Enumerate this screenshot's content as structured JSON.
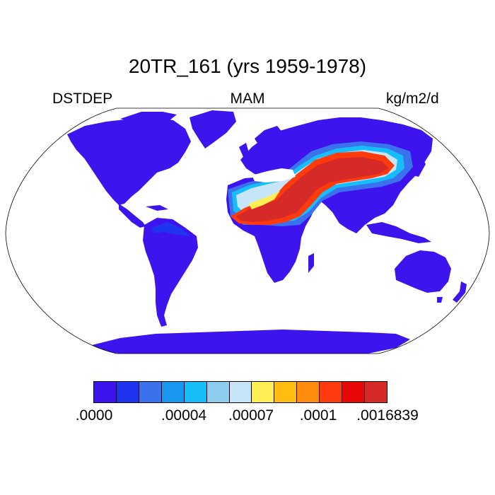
{
  "title": "20TR_161 (yrs 1959-1978)",
  "variable": "DSTDEP",
  "season": "MAM",
  "units": "kg/m2/d",
  "colorbar": {
    "colors": [
      "#3d13ee",
      "#1f34ee",
      "#3a72ee",
      "#1998f0",
      "#16bdf8",
      "#8ecdee",
      "#c6e6f8",
      "#ffee55",
      "#ffbd12",
      "#ff8b0f",
      "#ff3a0c",
      "#e80707",
      "#d52a27"
    ],
    "tick_labels": [
      ".0000",
      ".00004",
      ".00007",
      ".0001",
      ".0016839"
    ]
  },
  "map": {
    "projection": "Robinson",
    "ocean_color": "#ffffff",
    "coastline_color": "#000000"
  }
}
